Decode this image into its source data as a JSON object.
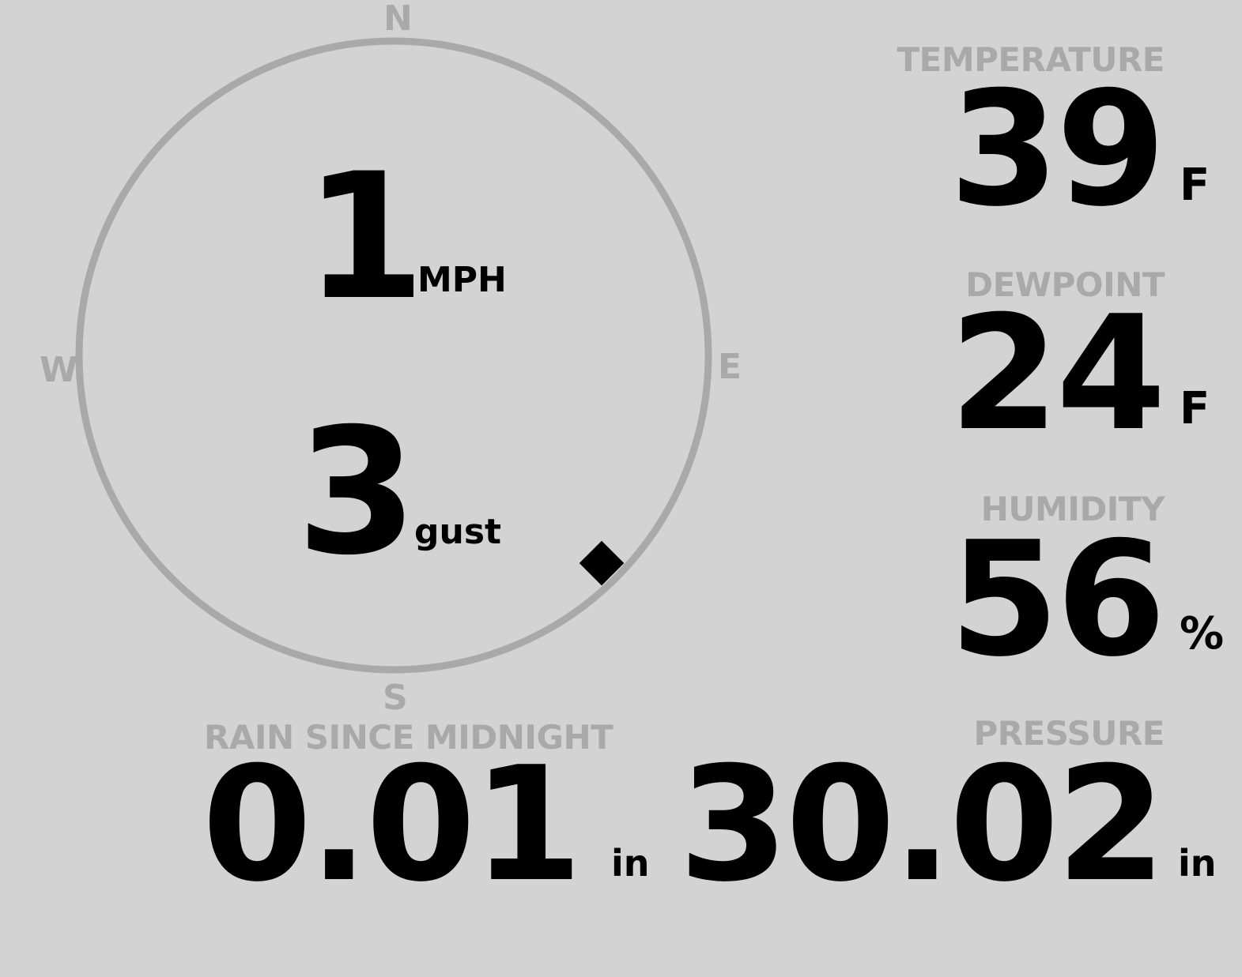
{
  "colors": {
    "background": "#d3d3d3",
    "muted": "#a9a9a9",
    "value": "#000000"
  },
  "compass": {
    "north": "N",
    "east": "E",
    "south": "S",
    "west": "W",
    "wind_direction_deg": 135,
    "pointer_icon": "diamond"
  },
  "wind": {
    "speed": "1",
    "speed_unit": "MPH",
    "gust": "3",
    "gust_unit": "gust"
  },
  "temperature": {
    "label": "TEMPERATURE",
    "value": "39",
    "unit": "F"
  },
  "dewpoint": {
    "label": "DEWPOINT",
    "value": "24",
    "unit": "F"
  },
  "humidity": {
    "label": "HUMIDITY",
    "value": "56",
    "unit": "%"
  },
  "rain": {
    "label": "RAIN SINCE MIDNIGHT",
    "value": "0.01",
    "unit": "in"
  },
  "pressure": {
    "label": "PRESSURE",
    "value": "30.02",
    "unit": "in"
  }
}
